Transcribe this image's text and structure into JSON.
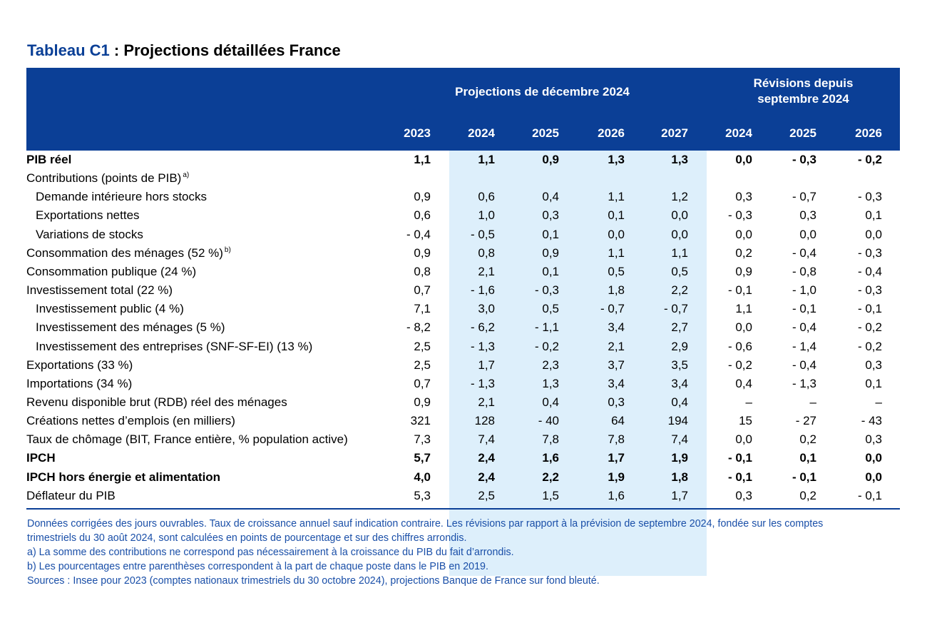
{
  "title": {
    "code": "Tableau C1",
    "separator": " : ",
    "text": "Projections détaillées France"
  },
  "header": {
    "group1": "Projections de décembre 2024",
    "group2_line1": "Révisions depuis",
    "group2_line2": "septembre 2024",
    "years": [
      "2023",
      "2024",
      "2025",
      "2026",
      "2027",
      "2024",
      "2025",
      "2026"
    ]
  },
  "colors": {
    "header_bg": "#0b3f96",
    "projection_shade": "#ddeffb",
    "notes_text": "#1a4fa8"
  },
  "rows": [
    {
      "label": "PIB réel",
      "sup": "",
      "bold": true,
      "indent": false,
      "values": [
        "1,1",
        "1,1",
        "0,9",
        "1,3",
        "1,3",
        "0,0",
        "- 0,3",
        "- 0,2"
      ]
    },
    {
      "label": "Contributions (points de PIB)",
      "sup": "a)",
      "bold": false,
      "indent": false,
      "values": [
        "",
        "",
        "",
        "",
        "",
        "",
        "",
        ""
      ]
    },
    {
      "label": "Demande intérieure hors stocks",
      "sup": "",
      "bold": false,
      "indent": true,
      "values": [
        "0,9",
        "0,6",
        "0,4",
        "1,1",
        "1,2",
        "0,3",
        "- 0,7",
        "- 0,3"
      ]
    },
    {
      "label": "Exportations nettes",
      "sup": "",
      "bold": false,
      "indent": true,
      "values": [
        "0,6",
        "1,0",
        "0,3",
        "0,1",
        "0,0",
        "- 0,3",
        "0,3",
        "0,1"
      ]
    },
    {
      "label": "Variations de stocks",
      "sup": "",
      "bold": false,
      "indent": true,
      "values": [
        "- 0,4",
        "- 0,5",
        "0,1",
        "0,0",
        "0,0",
        "0,0",
        "0,0",
        "0,0"
      ]
    },
    {
      "label": "Consommation des ménages (52 %)",
      "sup": "b)",
      "bold": false,
      "indent": false,
      "values": [
        "0,9",
        "0,8",
        "0,9",
        "1,1",
        "1,1",
        "0,2",
        "- 0,4",
        "- 0,3"
      ]
    },
    {
      "label": "Consommation publique (24 %)",
      "sup": "",
      "bold": false,
      "indent": false,
      "values": [
        "0,8",
        "2,1",
        "0,1",
        "0,5",
        "0,5",
        "0,9",
        "- 0,8",
        "- 0,4"
      ]
    },
    {
      "label": "Investissement total (22 %)",
      "sup": "",
      "bold": false,
      "indent": false,
      "values": [
        "0,7",
        "- 1,6",
        "- 0,3",
        "1,8",
        "2,2",
        "- 0,1",
        "- 1,0",
        "- 0,3"
      ]
    },
    {
      "label": "Investissement public (4 %)",
      "sup": "",
      "bold": false,
      "indent": true,
      "values": [
        "7,1",
        "3,0",
        "0,5",
        "- 0,7",
        "- 0,7",
        "1,1",
        "- 0,1",
        "- 0,1"
      ]
    },
    {
      "label": "Investissement des ménages (5 %)",
      "sup": "",
      "bold": false,
      "indent": true,
      "values": [
        "- 8,2",
        "- 6,2",
        "- 1,1",
        "3,4",
        "2,7",
        "0,0",
        "- 0,4",
        "- 0,2"
      ]
    },
    {
      "label": "Investissement des entreprises (SNF-SF-EI) (13 %)",
      "sup": "",
      "bold": false,
      "indent": true,
      "values": [
        "2,5",
        "- 1,3",
        "- 0,2",
        "2,1",
        "2,9",
        "- 0,6",
        "- 1,4",
        "- 0,2"
      ]
    },
    {
      "label": "Exportations (33 %)",
      "sup": "",
      "bold": false,
      "indent": false,
      "values": [
        "2,5",
        "1,7",
        "2,3",
        "3,7",
        "3,5",
        "- 0,2",
        "- 0,4",
        "0,3"
      ]
    },
    {
      "label": "Importations (34 %)",
      "sup": "",
      "bold": false,
      "indent": false,
      "values": [
        "0,7",
        "- 1,3",
        "1,3",
        "3,4",
        "3,4",
        "0,4",
        "- 1,3",
        "0,1"
      ]
    },
    {
      "label": "Revenu disponible brut (RDB) réel des ménages",
      "sup": "",
      "bold": false,
      "indent": false,
      "values": [
        "0,9",
        "2,1",
        "0,4",
        "0,3",
        "0,4",
        "–",
        "–",
        "–"
      ]
    },
    {
      "label": "Créations nettes d’emplois (en milliers)",
      "sup": "",
      "bold": false,
      "indent": false,
      "values": [
        "321",
        "128",
        "- 40",
        "64",
        "194",
        "15",
        "- 27",
        "- 43"
      ]
    },
    {
      "label": "Taux de chômage (BIT, France entière, % population active)",
      "sup": "",
      "bold": false,
      "indent": false,
      "values": [
        "7,3",
        "7,4",
        "7,8",
        "7,8",
        "7,4",
        "0,0",
        "0,2",
        "0,3"
      ]
    },
    {
      "label": "IPCH",
      "sup": "",
      "bold": true,
      "indent": false,
      "values": [
        "5,7",
        "2,4",
        "1,6",
        "1,7",
        "1,9",
        "- 0,1",
        "0,1",
        "0,0"
      ]
    },
    {
      "label": "IPCH hors énergie et alimentation",
      "sup": "",
      "bold": true,
      "indent": false,
      "values": [
        "4,0",
        "2,4",
        "2,2",
        "1,9",
        "1,8",
        "- 0,1",
        "- 0,1",
        "0,0"
      ]
    },
    {
      "label": "Déflateur du PIB",
      "sup": "",
      "bold": false,
      "indent": false,
      "values": [
        "5,3",
        "2,5",
        "1,5",
        "1,6",
        "1,7",
        "0,3",
        "0,2",
        "- 0,1"
      ]
    }
  ],
  "notes": [
    "Données corrigées des jours ouvrables. Taux de croissance annuel sauf indication contraire. Les révisions par rapport à la prévision de septembre 2024, fondée sur les comptes",
    "trimestriels du 30 août 2024, sont calculées en points de pourcentage et sur des chiffres arrondis.",
    "a) La somme des contributions ne correspond pas nécessairement à la croissance du PIB du fait d’arrondis.",
    "b) Les pourcentages entre parenthèses correspondent à la part de chaque poste dans le PIB en 2019.",
    "Sources : Insee pour 2023 (comptes nationaux trimestriels du 30 octobre 2024), projections Banque de France sur fond bleuté."
  ]
}
